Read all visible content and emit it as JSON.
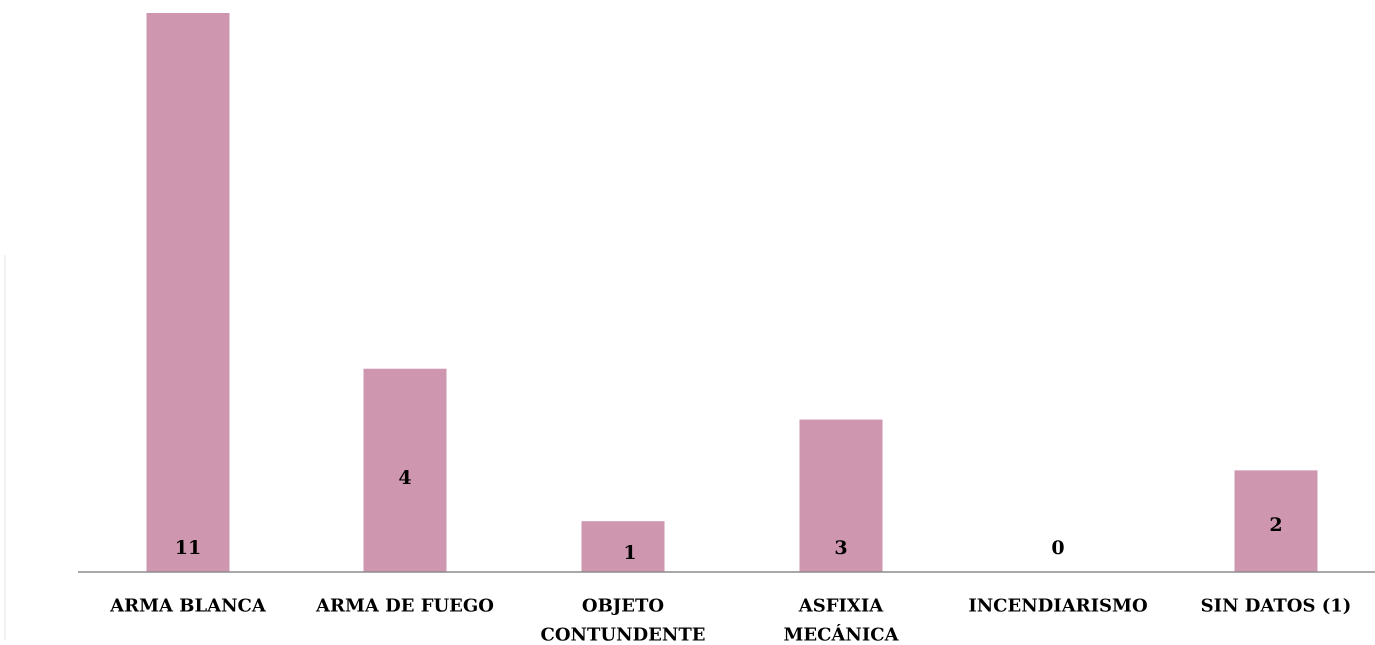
{
  "chart_data": {
    "type": "bar",
    "categories": [
      [
        "ARMA BLANCA"
      ],
      [
        "ARMA DE FUEGO"
      ],
      [
        "OBJETO",
        "CONTUNDENTE"
      ],
      [
        "ASFIXIA",
        "MECÁNICA"
      ],
      [
        "INCENDIARISMO"
      ],
      [
        "SIN DATOS (1)"
      ]
    ],
    "values": [
      11,
      4,
      1,
      3,
      0,
      2
    ],
    "bar_heights_data_units": [
      11,
      4,
      1,
      3,
      0,
      2
    ],
    "title": "",
    "xlabel": "",
    "ylabel": "",
    "ylim": [
      0,
      11
    ],
    "grid": false,
    "legend": "none",
    "colors": {
      "bar": "#CE96AF",
      "axis": "#8C8C8C",
      "text": "#000000"
    }
  }
}
